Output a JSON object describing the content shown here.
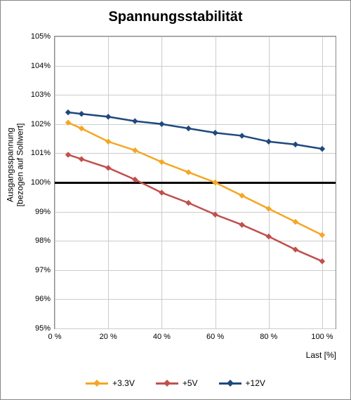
{
  "chart": {
    "type": "line",
    "title": "Spannungsstabilität",
    "title_fontsize": 20,
    "y_label_line1": "Ausgangsspannung",
    "y_label_line2": "[bezogen auf Sollwert]",
    "y_label_fontsize": 12,
    "x_label": "Last [%]",
    "x_label_fontsize": 12,
    "background_color": "#ffffff",
    "grid_color": "#cccccc",
    "axis_color": "#888888",
    "text_color": "#000000",
    "tick_fontsize": 11,
    "x": {
      "min": 0,
      "max": 105,
      "ticks": [
        0,
        20,
        40,
        60,
        80,
        100
      ],
      "tick_labels": [
        "0 %",
        "20 %",
        "40 %",
        "60 %",
        "80 %",
        "100 %"
      ]
    },
    "y": {
      "min": 95,
      "max": 105,
      "ticks": [
        95,
        96,
        97,
        98,
        99,
        100,
        101,
        102,
        103,
        104,
        105
      ],
      "tick_labels": [
        "95%",
        "96%",
        "97%",
        "98%",
        "99%",
        "100%",
        "101%",
        "102%",
        "103%",
        "104%",
        "105%"
      ]
    },
    "reference_line": {
      "y": 100,
      "color": "#000000",
      "width": 3
    },
    "line_width": 2.5,
    "marker_size": 6,
    "marker_style": "diamond",
    "series": [
      {
        "name": "+3.3V",
        "color": "#f5a623",
        "x": [
          5,
          10,
          20,
          30,
          40,
          50,
          60,
          70,
          80,
          90,
          100
        ],
        "y": [
          102.05,
          101.85,
          101.4,
          101.1,
          100.7,
          100.35,
          100.0,
          99.55,
          99.1,
          98.65,
          98.2
        ]
      },
      {
        "name": "+5V",
        "color": "#c0504d",
        "x": [
          5,
          10,
          20,
          30,
          40,
          50,
          60,
          70,
          80,
          90,
          100
        ],
        "y": [
          100.95,
          100.8,
          100.5,
          100.1,
          99.65,
          99.3,
          98.9,
          98.55,
          98.15,
          97.7,
          97.3
        ]
      },
      {
        "name": "+12V",
        "color": "#1f497d",
        "x": [
          5,
          10,
          20,
          30,
          40,
          50,
          60,
          70,
          80,
          90,
          100
        ],
        "y": [
          102.4,
          102.35,
          102.25,
          102.1,
          102.0,
          101.85,
          101.7,
          101.6,
          101.4,
          101.3,
          101.15
        ]
      }
    ],
    "legend": {
      "position": "bottom",
      "items": [
        "+3.3V",
        "+5V",
        "+12V"
      ]
    }
  }
}
